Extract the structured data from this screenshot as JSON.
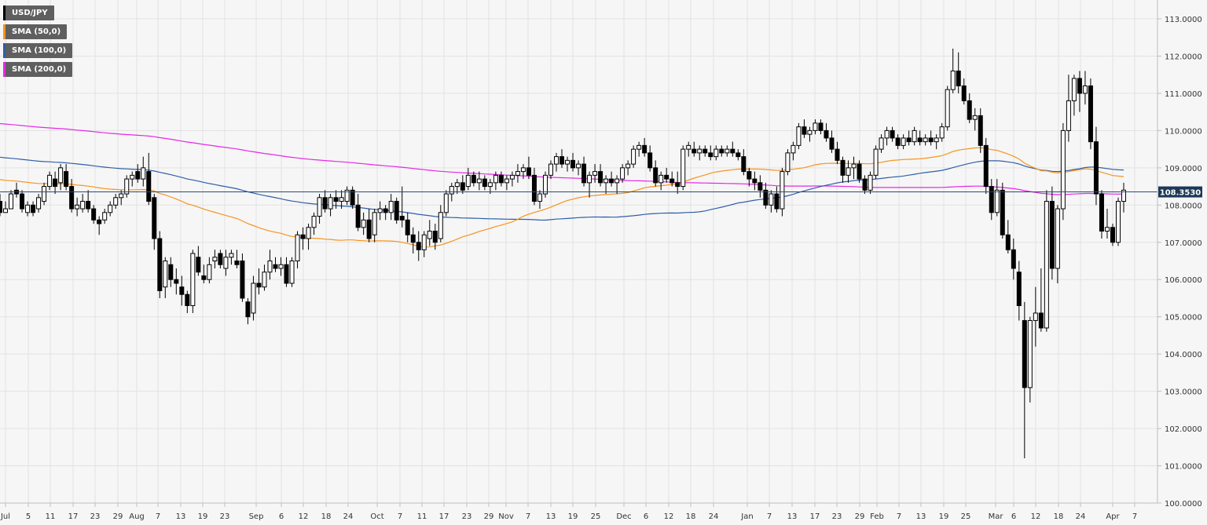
{
  "chart_data": {
    "type": "candlestick",
    "symbol": "USD/JPY",
    "last_price": "108.3530",
    "ylim": [
      100,
      113
    ],
    "y_ticks": [
      "100.0000",
      "101.0000",
      "102.0000",
      "103.0000",
      "104.0000",
      "105.0000",
      "106.0000",
      "107.0000",
      "108.0000",
      "109.0000",
      "110.0000",
      "111.0000",
      "112.0000",
      "113.0000"
    ],
    "x_ticks": [
      "Jul",
      "5",
      "11",
      "17",
      "23",
      "29",
      "Aug",
      "7",
      "13",
      "19",
      "23",
      "Sep",
      "6",
      "12",
      "18",
      "24",
      "Oct",
      "7",
      "11",
      "17",
      "23",
      "29",
      "Nov",
      "7",
      "13",
      "19",
      "25",
      "Dec",
      "6",
      "12",
      "18",
      "24",
      "Jan",
      "7",
      "13",
      "17",
      "23",
      "29",
      "Feb",
      "7",
      "13",
      "19",
      "25",
      "Mar",
      "6",
      "12",
      "18",
      "24",
      "Apr",
      "7"
    ],
    "legend": [
      {
        "label": "USD/JPY",
        "color": "#000000"
      },
      {
        "label": "SMA (50,0)",
        "color": "#f7941d"
      },
      {
        "label": "SMA (100,0)",
        "color": "#2e5fa8"
      },
      {
        "label": "SMA (200,0)",
        "color": "#e628e6"
      }
    ],
    "candles": [
      [
        108.1,
        108.3,
        107.7,
        107.8
      ],
      [
        107.8,
        108.1,
        107.8,
        107.9
      ],
      [
        107.9,
        108.4,
        107.9,
        108.3
      ],
      [
        108.4,
        108.6,
        108.2,
        108.3
      ],
      [
        108.3,
        108.4,
        107.8,
        107.9
      ],
      [
        107.8,
        108.1,
        107.7,
        108.0
      ],
      [
        108.0,
        108.1,
        107.7,
        107.8
      ],
      [
        107.9,
        108.3,
        107.8,
        108.2
      ],
      [
        108.1,
        108.6,
        108.0,
        108.5
      ],
      [
        108.5,
        108.9,
        108.4,
        108.8
      ],
      [
        108.7,
        108.9,
        108.3,
        108.5
      ],
      [
        108.6,
        109.1,
        108.4,
        109.0
      ],
      [
        108.9,
        109.1,
        108.4,
        108.5
      ],
      [
        108.5,
        108.7,
        107.8,
        107.9
      ],
      [
        107.9,
        108.2,
        107.7,
        108.0
      ],
      [
        107.9,
        108.3,
        107.8,
        108.1
      ],
      [
        108.1,
        108.4,
        107.8,
        107.9
      ],
      [
        107.9,
        108.0,
        107.5,
        107.6
      ],
      [
        107.6,
        107.7,
        107.2,
        107.5
      ],
      [
        107.6,
        107.9,
        107.5,
        107.8
      ],
      [
        107.8,
        108.1,
        107.7,
        108.0
      ],
      [
        108.0,
        108.3,
        107.9,
        108.2
      ],
      [
        108.2,
        108.4,
        108.0,
        108.3
      ],
      [
        108.3,
        108.8,
        108.2,
        108.7
      ],
      [
        108.7,
        108.9,
        108.5,
        108.8
      ],
      [
        108.9,
        109.1,
        108.6,
        108.7
      ],
      [
        108.7,
        109.3,
        108.5,
        109.0
      ],
      [
        108.9,
        109.4,
        108.0,
        108.1
      ],
      [
        108.2,
        108.3,
        106.8,
        107.1
      ],
      [
        107.1,
        107.3,
        105.5,
        105.7
      ],
      [
        105.8,
        106.6,
        105.5,
        106.5
      ],
      [
        106.4,
        106.6,
        105.8,
        106.0
      ],
      [
        106.0,
        106.3,
        105.6,
        105.9
      ],
      [
        105.8,
        106.1,
        105.3,
        105.6
      ],
      [
        105.6,
        105.7,
        105.1,
        105.3
      ],
      [
        105.3,
        106.8,
        105.1,
        106.7
      ],
      [
        106.6,
        106.9,
        106.1,
        106.2
      ],
      [
        106.1,
        106.4,
        105.9,
        106.0
      ],
      [
        106.0,
        106.6,
        105.9,
        106.4
      ],
      [
        106.5,
        106.8,
        106.3,
        106.6
      ],
      [
        106.7,
        106.8,
        106.3,
        106.4
      ],
      [
        106.3,
        106.8,
        106.1,
        106.6
      ],
      [
        106.6,
        106.8,
        106.4,
        106.7
      ],
      [
        106.5,
        106.8,
        106.3,
        106.4
      ],
      [
        106.5,
        106.7,
        105.4,
        105.5
      ],
      [
        105.4,
        105.5,
        104.8,
        105.0
      ],
      [
        105.1,
        106.1,
        104.9,
        105.9
      ],
      [
        105.9,
        106.3,
        105.6,
        105.8
      ],
      [
        105.8,
        106.4,
        105.7,
        106.2
      ],
      [
        106.2,
        106.8,
        106.0,
        106.5
      ],
      [
        106.4,
        106.6,
        106.2,
        106.3
      ],
      [
        106.3,
        106.6,
        106.1,
        106.4
      ],
      [
        106.4,
        106.6,
        105.8,
        105.9
      ],
      [
        105.9,
        106.6,
        105.8,
        106.5
      ],
      [
        106.5,
        107.3,
        106.3,
        107.2
      ],
      [
        107.2,
        107.4,
        106.8,
        107.1
      ],
      [
        107.1,
        107.5,
        106.8,
        107.4
      ],
      [
        107.4,
        107.8,
        107.2,
        107.7
      ],
      [
        107.7,
        108.3,
        107.5,
        108.2
      ],
      [
        108.2,
        108.4,
        107.8,
        107.9
      ],
      [
        107.9,
        108.3,
        107.7,
        108.2
      ],
      [
        108.2,
        108.4,
        107.9,
        108.1
      ],
      [
        108.1,
        108.4,
        107.9,
        108.2
      ],
      [
        108.1,
        108.5,
        108.0,
        108.4
      ],
      [
        108.4,
        108.5,
        107.9,
        108.0
      ],
      [
        108.0,
        108.3,
        107.3,
        107.4
      ],
      [
        107.4,
        107.8,
        107.2,
        107.6
      ],
      [
        107.6,
        107.9,
        107.0,
        107.1
      ],
      [
        107.2,
        107.9,
        107.0,
        107.8
      ],
      [
        107.8,
        108.1,
        107.6,
        107.9
      ],
      [
        107.9,
        108.0,
        107.6,
        107.8
      ],
      [
        107.8,
        108.3,
        107.6,
        108.1
      ],
      [
        108.1,
        108.2,
        107.5,
        107.6
      ],
      [
        107.7,
        108.5,
        107.4,
        107.6
      ],
      [
        107.6,
        107.8,
        107.0,
        107.2
      ],
      [
        107.2,
        107.4,
        106.7,
        107.0
      ],
      [
        107.0,
        107.3,
        106.5,
        106.8
      ],
      [
        106.8,
        107.3,
        106.6,
        107.2
      ],
      [
        107.1,
        107.6,
        106.9,
        107.3
      ],
      [
        107.3,
        107.5,
        106.8,
        107.0
      ],
      [
        107.1,
        108.0,
        107.0,
        107.8
      ],
      [
        107.8,
        108.4,
        107.7,
        108.3
      ],
      [
        108.3,
        108.6,
        108.1,
        108.5
      ],
      [
        108.5,
        108.7,
        108.3,
        108.6
      ],
      [
        108.6,
        108.8,
        108.3,
        108.4
      ],
      [
        108.5,
        109.0,
        108.4,
        108.8
      ],
      [
        108.8,
        108.9,
        108.5,
        108.6
      ],
      [
        108.6,
        108.9,
        108.4,
        108.7
      ],
      [
        108.7,
        108.8,
        108.4,
        108.5
      ],
      [
        108.5,
        108.7,
        108.3,
        108.6
      ],
      [
        108.6,
        108.9,
        108.4,
        108.8
      ],
      [
        108.8,
        108.9,
        108.5,
        108.6
      ],
      [
        108.6,
        108.8,
        108.4,
        108.7
      ],
      [
        108.7,
        108.9,
        108.5,
        108.8
      ],
      [
        108.8,
        109.1,
        108.6,
        108.9
      ],
      [
        108.9,
        109.1,
        108.7,
        109.0
      ],
      [
        109.0,
        109.3,
        108.7,
        108.8
      ],
      [
        108.8,
        109.0,
        108.0,
        108.1
      ],
      [
        108.1,
        108.4,
        107.9,
        108.3
      ],
      [
        108.3,
        108.9,
        108.2,
        108.8
      ],
      [
        108.8,
        109.2,
        108.7,
        109.1
      ],
      [
        109.1,
        109.4,
        108.9,
        109.3
      ],
      [
        109.3,
        109.5,
        109.0,
        109.1
      ],
      [
        109.1,
        109.3,
        108.9,
        109.2
      ],
      [
        109.2,
        109.4,
        108.9,
        109.0
      ],
      [
        109.0,
        109.2,
        108.8,
        109.1
      ],
      [
        109.1,
        109.3,
        108.5,
        108.6
      ],
      [
        108.6,
        108.9,
        108.2,
        108.8
      ],
      [
        108.8,
        109.1,
        108.6,
        108.9
      ],
      [
        108.9,
        109.1,
        108.5,
        108.6
      ],
      [
        108.6,
        108.8,
        108.3,
        108.7
      ],
      [
        108.7,
        108.9,
        108.5,
        108.6
      ],
      [
        108.6,
        108.8,
        108.3,
        108.7
      ],
      [
        108.7,
        109.1,
        108.6,
        109.0
      ],
      [
        109.0,
        109.2,
        108.8,
        109.1
      ],
      [
        109.1,
        109.6,
        109.0,
        109.5
      ],
      [
        109.5,
        109.7,
        109.3,
        109.6
      ],
      [
        109.6,
        109.8,
        109.3,
        109.4
      ],
      [
        109.4,
        109.6,
        108.9,
        109.0
      ],
      [
        109.0,
        109.2,
        108.5,
        108.6
      ],
      [
        108.6,
        108.9,
        108.4,
        108.8
      ],
      [
        108.8,
        109.0,
        108.6,
        108.7
      ],
      [
        108.7,
        108.9,
        108.5,
        108.6
      ],
      [
        108.6,
        108.9,
        108.3,
        108.5
      ],
      [
        108.5,
        109.6,
        108.4,
        109.5
      ],
      [
        109.5,
        109.7,
        109.3,
        109.6
      ],
      [
        109.5,
        109.7,
        109.3,
        109.4
      ],
      [
        109.4,
        109.6,
        109.2,
        109.5
      ],
      [
        109.5,
        109.6,
        109.3,
        109.4
      ],
      [
        109.4,
        109.6,
        109.2,
        109.3
      ],
      [
        109.3,
        109.6,
        109.2,
        109.5
      ],
      [
        109.5,
        109.6,
        109.3,
        109.4
      ],
      [
        109.4,
        109.6,
        109.3,
        109.5
      ],
      [
        109.5,
        109.7,
        109.3,
        109.4
      ],
      [
        109.4,
        109.5,
        109.2,
        109.3
      ],
      [
        109.3,
        109.5,
        108.8,
        108.9
      ],
      [
        108.9,
        109.0,
        108.5,
        108.7
      ],
      [
        108.7,
        108.9,
        108.4,
        108.6
      ],
      [
        108.6,
        108.8,
        108.2,
        108.4
      ],
      [
        108.4,
        108.6,
        107.9,
        108.0
      ],
      [
        108.0,
        108.4,
        107.8,
        108.3
      ],
      [
        108.3,
        108.5,
        107.8,
        107.9
      ],
      [
        107.9,
        109.0,
        107.7,
        108.9
      ],
      [
        108.9,
        109.5,
        108.8,
        109.4
      ],
      [
        109.4,
        109.7,
        109.2,
        109.6
      ],
      [
        109.6,
        110.2,
        109.5,
        110.1
      ],
      [
        110.1,
        110.3,
        109.8,
        109.9
      ],
      [
        109.9,
        110.1,
        109.7,
        110.0
      ],
      [
        110.0,
        110.3,
        109.9,
        110.2
      ],
      [
        110.2,
        110.3,
        109.9,
        110.0
      ],
      [
        110.0,
        110.2,
        109.7,
        109.8
      ],
      [
        109.8,
        110.0,
        109.4,
        109.5
      ],
      [
        109.5,
        109.7,
        109.1,
        109.2
      ],
      [
        109.2,
        109.3,
        108.6,
        108.8
      ],
      [
        108.8,
        109.2,
        108.6,
        109.0
      ],
      [
        109.0,
        109.3,
        108.7,
        109.1
      ],
      [
        109.1,
        109.2,
        108.6,
        108.7
      ],
      [
        108.7,
        108.8,
        108.3,
        108.4
      ],
      [
        108.4,
        108.9,
        108.3,
        108.8
      ],
      [
        108.8,
        109.6,
        108.7,
        109.5
      ],
      [
        109.5,
        109.9,
        109.4,
        109.8
      ],
      [
        109.8,
        110.1,
        109.6,
        110.0
      ],
      [
        110.0,
        110.1,
        109.7,
        109.8
      ],
      [
        109.8,
        109.9,
        109.5,
        109.6
      ],
      [
        109.6,
        109.9,
        109.5,
        109.8
      ],
      [
        109.8,
        110.0,
        109.6,
        109.7
      ],
      [
        109.7,
        110.1,
        109.6,
        110.0
      ],
      [
        109.8,
        110.0,
        109.6,
        109.7
      ],
      [
        109.7,
        109.9,
        109.6,
        109.8
      ],
      [
        109.8,
        110.0,
        109.6,
        109.7
      ],
      [
        109.7,
        109.9,
        109.5,
        109.8
      ],
      [
        109.8,
        110.2,
        109.7,
        110.1
      ],
      [
        110.1,
        111.2,
        110.0,
        111.1
      ],
      [
        111.1,
        112.2,
        111.0,
        111.6
      ],
      [
        111.6,
        112.1,
        111.0,
        111.2
      ],
      [
        111.2,
        111.4,
        110.7,
        110.8
      ],
      [
        110.8,
        111.0,
        110.2,
        110.3
      ],
      [
        110.3,
        110.6,
        110.0,
        110.4
      ],
      [
        110.4,
        110.6,
        109.4,
        109.6
      ],
      [
        109.6,
        109.8,
        108.3,
        108.5
      ],
      [
        108.5,
        108.7,
        107.6,
        107.8
      ],
      [
        107.8,
        108.7,
        107.7,
        108.4
      ],
      [
        108.4,
        108.6,
        107.1,
        107.2
      ],
      [
        107.2,
        107.6,
        106.7,
        106.8
      ],
      [
        106.8,
        107.1,
        106.0,
        106.3
      ],
      [
        106.2,
        106.5,
        104.9,
        105.3
      ],
      [
        104.9,
        105.4,
        101.2,
        103.1
      ],
      [
        103.1,
        105.0,
        102.7,
        104.9
      ],
      [
        104.9,
        105.8,
        104.2,
        105.1
      ],
      [
        105.1,
        106.3,
        104.6,
        104.7
      ],
      [
        104.7,
        108.4,
        104.6,
        108.1
      ],
      [
        108.1,
        108.5,
        106.0,
        106.3
      ],
      [
        106.3,
        108.0,
        105.9,
        107.9
      ],
      [
        107.9,
        110.2,
        107.6,
        110.0
      ],
      [
        110.0,
        111.5,
        109.7,
        110.8
      ],
      [
        110.8,
        111.5,
        110.4,
        111.4
      ],
      [
        111.4,
        111.6,
        110.5,
        111.0
      ],
      [
        111.0,
        111.6,
        110.7,
        111.2
      ],
      [
        111.2,
        111.4,
        109.5,
        109.7
      ],
      [
        109.7,
        110.1,
        108.0,
        108.3
      ],
      [
        108.3,
        108.4,
        107.1,
        107.3
      ],
      [
        107.3,
        107.9,
        107.1,
        107.4
      ],
      [
        107.4,
        107.5,
        106.9,
        107.0
      ],
      [
        107.0,
        108.2,
        106.9,
        108.1
      ],
      [
        108.1,
        108.6,
        107.8,
        108.4
      ]
    ]
  }
}
